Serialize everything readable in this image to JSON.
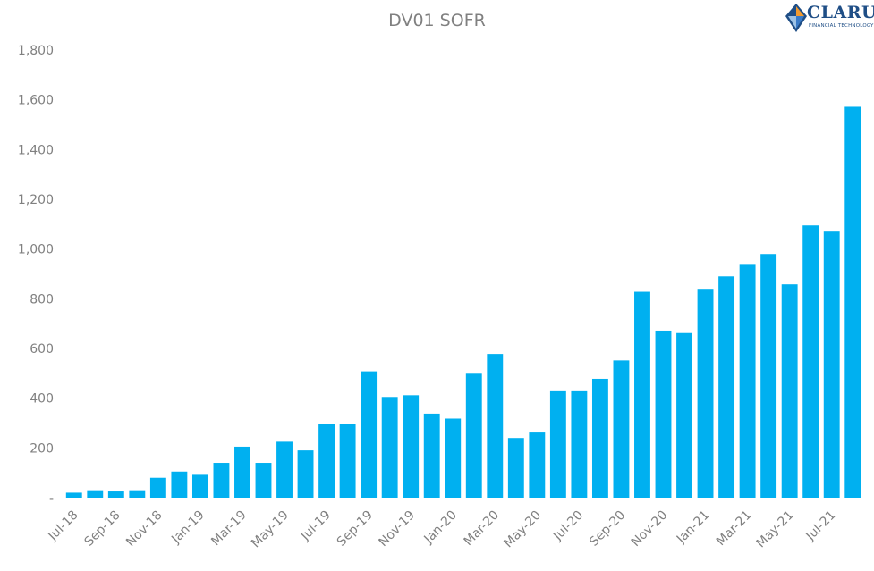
{
  "chart_data": {
    "type": "bar",
    "title": "DV01 SOFR",
    "categories": [
      "Jul-18",
      "Aug-18",
      "Sep-18",
      "Oct-18",
      "Nov-18",
      "Dec-18",
      "Jan-19",
      "Feb-19",
      "Mar-19",
      "Apr-19",
      "May-19",
      "Jun-19",
      "Jul-19",
      "Aug-19",
      "Sep-19",
      "Oct-19",
      "Nov-19",
      "Dec-19",
      "Jan-20",
      "Feb-20",
      "Mar-20",
      "Apr-20",
      "May-20",
      "Jun-20",
      "Jul-20",
      "Aug-20",
      "Sep-20",
      "Oct-20",
      "Nov-20",
      "Dec-20",
      "Jan-21",
      "Feb-21",
      "Mar-21",
      "Apr-21",
      "May-21",
      "Jun-21",
      "Jul-21",
      "Aug-21"
    ],
    "x_tick_labels": [
      "Jul-18",
      "Sep-18",
      "Nov-18",
      "Jan-19",
      "Mar-19",
      "May-19",
      "Jul-19",
      "Sep-19",
      "Nov-19",
      "Jan-20",
      "Mar-20",
      "May-20",
      "Jul-20",
      "Sep-20",
      "Nov-20",
      "Jan-21",
      "Mar-21",
      "May-21",
      "Jul-21"
    ],
    "values": [
      20,
      30,
      25,
      30,
      80,
      105,
      92,
      140,
      205,
      140,
      225,
      190,
      298,
      298,
      508,
      405,
      412,
      338,
      318,
      502,
      578,
      240,
      262,
      428,
      428,
      478,
      552,
      828,
      672,
      662,
      840,
      890,
      940,
      980,
      858,
      1095,
      1070,
      1572
    ],
    "ylim": [
      0,
      1800
    ],
    "y_tick_labels": [
      "-",
      "200",
      "400",
      "600",
      "800",
      "1,000",
      "1,200",
      "1,400",
      "1,600",
      "1,800"
    ],
    "y_tick_values": [
      0,
      200,
      400,
      600,
      800,
      1000,
      1200,
      1400,
      1600,
      1800
    ],
    "grid": false,
    "legend": "none",
    "bar_color": "#00b0f0",
    "text_color": "#808080"
  },
  "logo": {
    "name": "CLARUS",
    "tagline": "FINANCIAL TECHNOLOGY",
    "primary_color": "#1f4e86",
    "accent_color": "#f29a2e"
  }
}
